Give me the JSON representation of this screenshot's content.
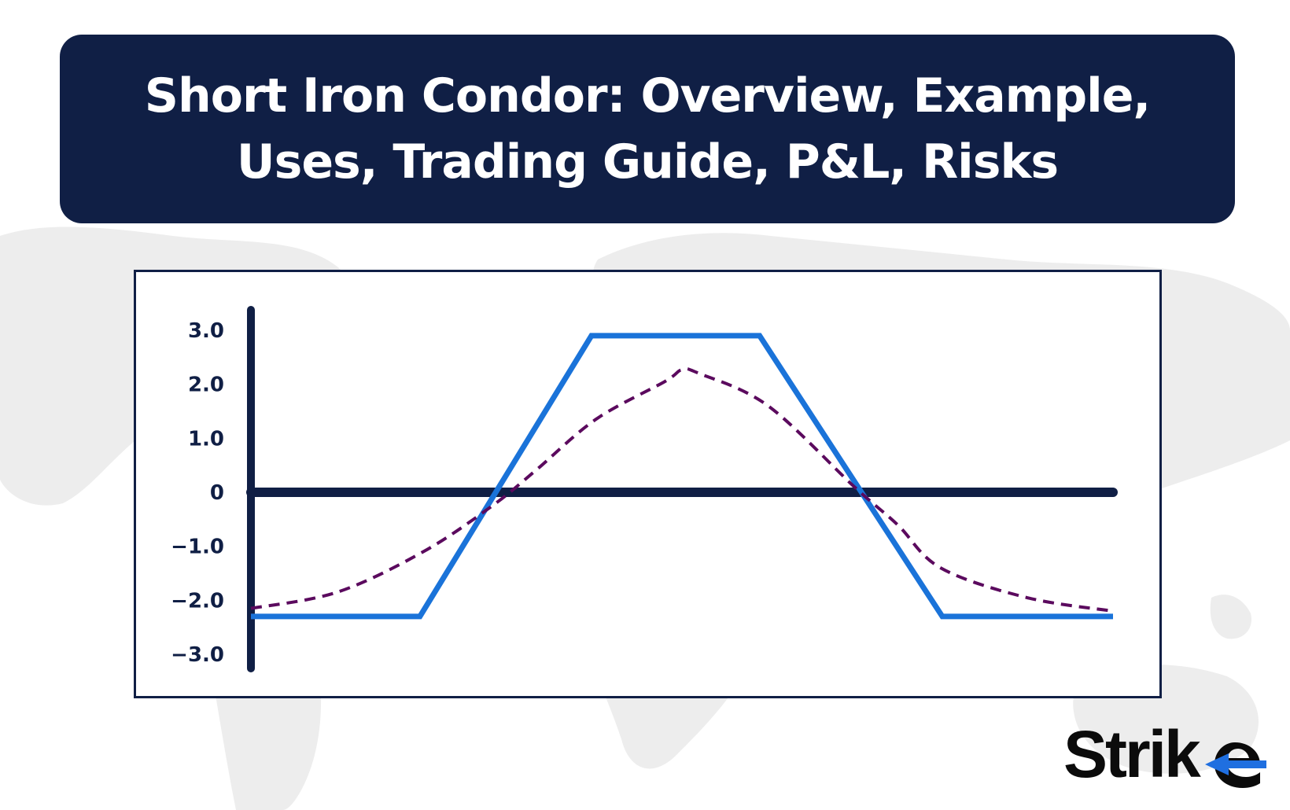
{
  "title": {
    "line1": "Short Iron Condor: Overview, Example,",
    "line2": "Uses, Trading Guide, P&L, Risks"
  },
  "brand": {
    "logo_text": "Strike",
    "accent_color": "#1f6fe0"
  },
  "colors": {
    "banner": "#101f45",
    "axis": "#101f45",
    "payoff_line": "#1a73d9",
    "dashed_curve": "#5b0a5e",
    "map": "#ededed"
  },
  "chart_data": {
    "type": "line",
    "title": "",
    "xlabel": "",
    "ylabel": "",
    "ylim": [
      -3.0,
      3.0
    ],
    "yticks": [
      "3.0",
      "2.0",
      "1.0",
      "0",
      "-1.0",
      "-2.0",
      "-3.0"
    ],
    "xlim": [
      0,
      100
    ],
    "grid": false,
    "series": [
      {
        "style": "solid",
        "color": "#1a73d9",
        "x": [
          0,
          19.6,
          39.5,
          59.0,
          80.2,
          100
        ],
        "y": [
          -2.3,
          -2.3,
          2.9,
          2.9,
          -2.3,
          -2.3
        ]
      },
      {
        "style": "dashed",
        "color": "#5b0a5e",
        "x": [
          0,
          10,
          20,
          28,
          33,
          40,
          48,
          50,
          52,
          60,
          70,
          75,
          80,
          90,
          100
        ],
        "y": [
          -2.15,
          -1.85,
          -1.1,
          -0.25,
          0.4,
          1.35,
          2.05,
          2.27,
          2.2,
          1.6,
          0.1,
          -0.6,
          -1.4,
          -1.95,
          -2.2
        ]
      }
    ]
  }
}
